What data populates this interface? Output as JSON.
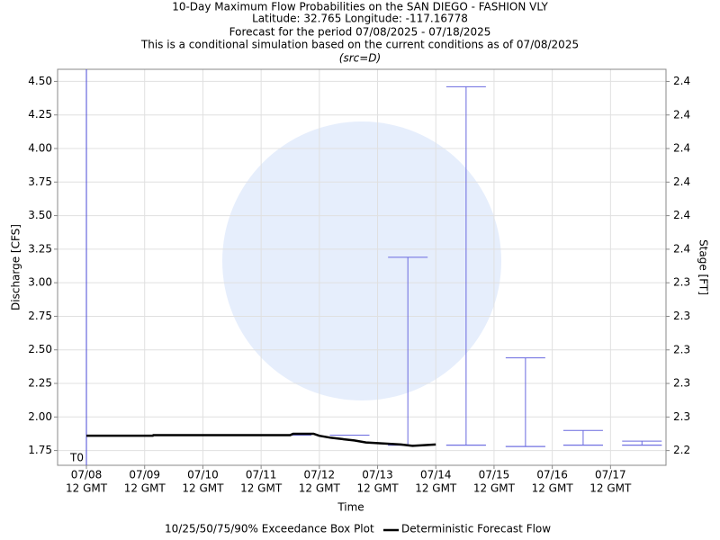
{
  "chart_data": {
    "type": "boxplot",
    "title": [
      "10-Day Maximum Flow Probabilities on the SAN DIEGO - FASHION VLY",
      "Latitude: 32.765 Longitude: -117.16778",
      "Forecast for the period 07/08/2025 - 07/18/2025",
      "This is a conditional simulation based on the current conditions as of 07/08/2025"
    ],
    "subtitle": "(src=D)",
    "x_label": "Time",
    "y_label": "Discharge [CFS]",
    "y2_label": "Stage [FT]",
    "xlim": [
      -0.495,
      9.953
    ],
    "xticks": [
      {
        "value": 0,
        "label": [
          "07/08",
          "12 GMT"
        ]
      },
      {
        "value": 1,
        "label": [
          "07/09",
          "12 GMT"
        ]
      },
      {
        "value": 2,
        "label": [
          "07/10",
          "12 GMT"
        ]
      },
      {
        "value": 3,
        "label": [
          "07/11",
          "12 GMT"
        ]
      },
      {
        "value": 4,
        "label": [
          "07/12",
          "12 GMT"
        ]
      },
      {
        "value": 5,
        "label": [
          "07/13",
          "12 GMT"
        ]
      },
      {
        "value": 6,
        "label": [
          "07/14",
          "12 GMT"
        ]
      },
      {
        "value": 7,
        "label": [
          "07/15",
          "12 GMT"
        ]
      },
      {
        "value": 8,
        "label": [
          "07/16",
          "12 GMT"
        ]
      },
      {
        "value": 9,
        "label": [
          "07/17",
          "12 GMT"
        ]
      }
    ],
    "ylim": [
      1.64,
      4.59
    ],
    "yticks": [
      {
        "value": 1.75,
        "label": "1.75"
      },
      {
        "value": 2,
        "label": "2.00"
      },
      {
        "value": 2.25,
        "label": "2.25"
      },
      {
        "value": 2.5,
        "label": "2.50"
      },
      {
        "value": 2.75,
        "label": "2.75"
      },
      {
        "value": 3,
        "label": "3.00"
      },
      {
        "value": 3.25,
        "label": "3.25"
      },
      {
        "value": 3.5,
        "label": "3.50"
      },
      {
        "value": 3.75,
        "label": "3.75"
      },
      {
        "value": 4,
        "label": "4.00"
      },
      {
        "value": 4.25,
        "label": "4.25"
      },
      {
        "value": 4.5,
        "label": "4.50"
      }
    ],
    "y2lim": [
      2.2371,
      2.4495
    ],
    "y2ticks": [
      {
        "value": 2.245,
        "label": "2.2"
      },
      {
        "value": 2.263,
        "label": "2.3"
      },
      {
        "value": 2.281,
        "label": "2.3"
      },
      {
        "value": 2.299,
        "label": "2.3"
      },
      {
        "value": 2.317,
        "label": "2.3"
      },
      {
        "value": 2.335,
        "label": "2.3"
      },
      {
        "value": 2.353,
        "label": "2.4"
      },
      {
        "value": 2.371,
        "label": "2.4"
      },
      {
        "value": 2.389,
        "label": "2.4"
      },
      {
        "value": 2.407,
        "label": "2.4"
      },
      {
        "value": 2.425,
        "label": "2.4"
      },
      {
        "value": 2.443,
        "label": "2.4"
      }
    ],
    "grid": true,
    "t0": {
      "x": 0,
      "label": "T0"
    },
    "boxes": {
      "name": "10/25/50/75/90% Exceedance Box Plot",
      "color": "#6a6adf",
      "x": [
        3.52,
        4.52,
        5.52,
        6.52,
        7.54,
        8.53,
        9.54
      ],
      "p10": [
        1.865,
        1.865,
        1.79,
        1.79,
        1.78,
        1.79,
        1.79
      ],
      "p25": [
        1.865,
        1.865,
        1.79,
        1.79,
        1.78,
        1.79,
        1.79
      ],
      "p50": [
        1.865,
        1.865,
        1.79,
        1.79,
        1.78,
        1.79,
        1.79
      ],
      "p75": [
        1.865,
        1.865,
        1.79,
        1.79,
        1.78,
        1.79,
        1.79
      ],
      "p90": [
        1.865,
        1.865,
        3.19,
        4.46,
        2.44,
        1.9,
        1.82
      ]
    },
    "series": [
      {
        "name": "Deterministic Forecast Flow",
        "color": "#000000",
        "x": [
          0,
          1.14,
          1.15,
          3.5,
          3.55,
          3.9,
          4.0,
          4.2,
          4.4,
          4.6,
          4.8,
          5.0,
          5.2,
          5.4,
          5.6,
          5.8,
          6.0
        ],
        "values": [
          1.86,
          1.86,
          1.865,
          1.865,
          1.875,
          1.875,
          1.86,
          1.845,
          1.835,
          1.825,
          1.81,
          1.805,
          1.8,
          1.795,
          1.785,
          1.79,
          1.795
        ]
      }
    ]
  }
}
